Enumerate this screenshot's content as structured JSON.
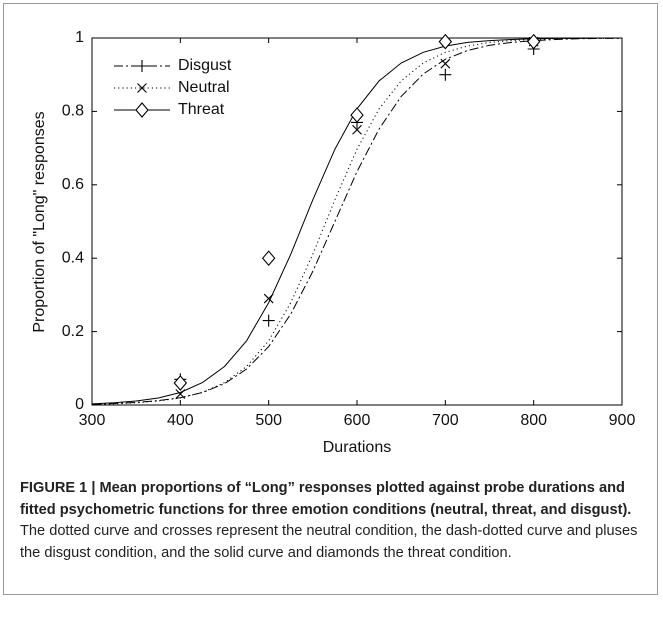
{
  "chart_data": {
    "type": "line",
    "xlabel": "Durations",
    "ylabel": "Proportion of \"Long\" responses",
    "xlim": [
      300,
      900
    ],
    "ylim": [
      0,
      1
    ],
    "xticks": [
      300,
      400,
      500,
      600,
      700,
      800,
      900
    ],
    "yticks": [
      0,
      0.2,
      0.4,
      0.6,
      0.8,
      1
    ],
    "legend": "upper left",
    "x": [
      400,
      500,
      600,
      700,
      800
    ],
    "curve_x": [
      300,
      325,
      350,
      375,
      400,
      425,
      450,
      475,
      500,
      525,
      550,
      575,
      600,
      625,
      650,
      675,
      700,
      725,
      750,
      775,
      800,
      825,
      850,
      875,
      900
    ],
    "series": [
      {
        "name": "Disgust",
        "color": "#000000",
        "marker": "plus",
        "dash": "dashdot",
        "values": [
          0.07,
          0.23,
          0.77,
          0.9,
          0.97
        ],
        "curve": [
          0.002,
          0.004,
          0.007,
          0.012,
          0.02,
          0.034,
          0.058,
          0.098,
          0.159,
          0.248,
          0.364,
          0.5,
          0.636,
          0.752,
          0.841,
          0.902,
          0.942,
          0.966,
          0.98,
          0.988,
          0.993,
          0.996,
          0.998,
          0.999,
          0.999
        ]
      },
      {
        "name": "Neutral",
        "color": "#000000",
        "marker": "cross",
        "dash": "dotted",
        "values": [
          0.03,
          0.29,
          0.75,
          0.93,
          0.99
        ],
        "curve": [
          0.002,
          0.003,
          0.006,
          0.011,
          0.019,
          0.034,
          0.061,
          0.105,
          0.175,
          0.279,
          0.411,
          0.559,
          0.697,
          0.807,
          0.883,
          0.932,
          0.961,
          0.978,
          0.988,
          0.993,
          0.996,
          0.998,
          0.999,
          0.999,
          1
        ]
      },
      {
        "name": "Threat",
        "color": "#000000",
        "marker": "diamond",
        "dash": "solid",
        "values": [
          0.06,
          0.4,
          0.79,
          0.99,
          0.99
        ],
        "curve": [
          0.003,
          0.006,
          0.011,
          0.019,
          0.034,
          0.061,
          0.105,
          0.175,
          0.279,
          0.411,
          0.559,
          0.697,
          0.807,
          0.883,
          0.932,
          0.961,
          0.978,
          0.988,
          0.993,
          0.996,
          0.998,
          0.999,
          0.999,
          1,
          1
        ]
      }
    ]
  },
  "caption": {
    "title": "FIGURE 1 | Mean proportions of “Long” responses plotted against probe durations and fitted psychometric functions for three emotion conditions (neutral, threat, and disgust).",
    "text": "The dotted curve and crosses represent the neutral condition, the dash-dotted curve and pluses the disgust condition, and the solid curve and diamonds the threat condition."
  }
}
